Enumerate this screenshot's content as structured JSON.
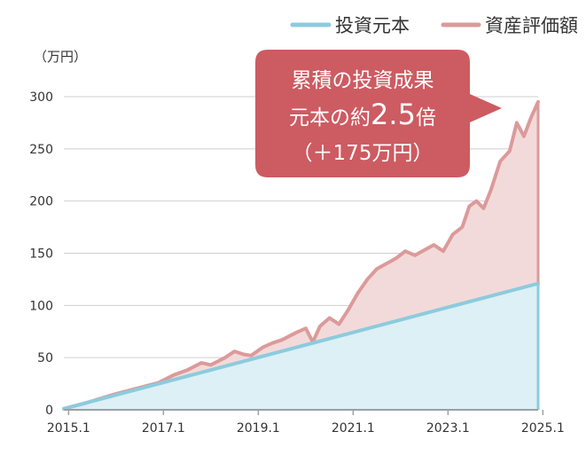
{
  "chart_data": {
    "type": "area",
    "unit_label": "（万円）",
    "x_ticks": [
      "2015.1",
      "2017.1",
      "2019.1",
      "2021.1",
      "2023.1",
      "2025.1"
    ],
    "y_ticks": [
      0,
      50,
      100,
      150,
      200,
      250,
      300
    ],
    "xlim": [
      2015.0,
      2025.0
    ],
    "ylim": [
      0,
      300
    ],
    "grid": true,
    "legend_position": "top-right",
    "colors": {
      "principal_line": "#8ccbdd",
      "principal_fill": "#dcf0f6",
      "value_line": "#dc9a9a",
      "value_fill": "#f3dada",
      "callout": "#cd5b62"
    },
    "series": [
      {
        "name": "投資元本",
        "x": [
          2015.0,
          2025.0
        ],
        "values": [
          1,
          121
        ]
      },
      {
        "name": "資産評価額",
        "x": [
          2015.0,
          2015.5,
          2016.0,
          2016.5,
          2017.0,
          2017.3,
          2017.6,
          2017.9,
          2018.1,
          2018.4,
          2018.6,
          2018.8,
          2018.95,
          2019.2,
          2019.4,
          2019.6,
          2019.9,
          2020.1,
          2020.25,
          2020.4,
          2020.6,
          2020.8,
          2021.0,
          2021.2,
          2021.4,
          2021.6,
          2021.8,
          2022.0,
          2022.2,
          2022.4,
          2022.6,
          2022.8,
          2023.0,
          2023.2,
          2023.4,
          2023.55,
          2023.7,
          2023.85,
          2024.0,
          2024.2,
          2024.4,
          2024.55,
          2024.7,
          2024.85,
          2025.0
        ],
        "values": [
          1,
          7,
          14,
          20,
          26,
          33,
          38,
          45,
          43,
          50,
          56,
          53,
          52,
          60,
          64,
          67,
          74,
          78,
          65,
          80,
          88,
          82,
          96,
          112,
          125,
          135,
          140,
          145,
          152,
          148,
          153,
          158,
          152,
          168,
          175,
          195,
          200,
          193,
          210,
          238,
          248,
          275,
          262,
          280,
          295
        ]
      }
    ],
    "callout": {
      "line1": "累積の投資成果",
      "line2_prefix": "元本の約",
      "line2_big": "2.5",
      "line2_suffix": "倍",
      "line3": "（＋175万円）"
    }
  }
}
